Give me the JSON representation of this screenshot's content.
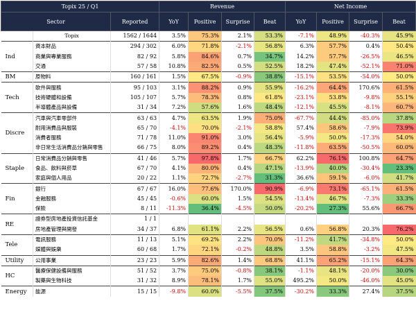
{
  "table": {
    "title": "Topix 25 / Q1",
    "revenue": "Revenue",
    "net_income": "Net Income",
    "columns": [
      "Sector",
      "Reported",
      "YoY",
      "Positive",
      "Surprise",
      "Beat",
      "YoY",
      "Positive",
      "Surprise",
      "Beat"
    ],
    "groups": [
      {
        "rows": [
          {
            "name": "Topix",
            "reported": "1562 / 1644",
            "cells": [
              "3.5%",
              "75.3%",
              "2.1%",
              "53.3%",
              "-7.1%",
              "48.9%",
              "-40.3%",
              "45.9%"
            ]
          }
        ]
      },
      {
        "label": "Ind",
        "rows": [
          {
            "name": "資本財品",
            "reported": "294 / 302",
            "cells": [
              "6.0%",
              "71.8%",
              "-2.1%",
              "56.8%",
              "6.3%",
              "57.7%",
              "0.4%",
              "50.4%"
            ]
          },
          {
            "name": "商業與專業服務",
            "reported": "82 / 92",
            "cells": [
              "5.8%",
              "84.6%",
              "0.7%",
              "34.7%",
              "14.2%",
              "57.7%",
              "-26.5%",
              "46.5%"
            ]
          },
          {
            "name": "交通",
            "reported": "57 / 58",
            "cells": [
              "10.8%",
              "82.5%",
              "0.5%",
              "52.5%",
              "18.2%",
              "47.4%",
              "-52.1%",
              "71.0%"
            ]
          }
        ]
      },
      {
        "label": "BM",
        "rows": [
          {
            "name": "原物料",
            "reported": "160 / 161",
            "cells": [
              "1.5%",
              "67.5%",
              "-0.9%",
              "38.8%",
              "-15.1%",
              "53.5%",
              "-54.0%",
              "50.0%"
            ]
          }
        ]
      },
      {
        "label": "Tech",
        "rows": [
          {
            "name": "軟件與服務",
            "reported": "95 / 103",
            "cells": [
              "3.1%",
              "88.2%",
              "0.9%",
              "55.9%",
              "-16.2%",
              "64.4%",
              "170.6%",
              "61.5%"
            ]
          },
          {
            "name": "技術硬體和設備",
            "reported": "105 / 107",
            "cells": [
              "5.7%",
              "78.3%",
              "0.8%",
              "61.8%",
              "-23.1%",
              "53.8%",
              "-9.8%",
              "55.1%"
            ]
          },
          {
            "name": "半導體產品與設備",
            "reported": "31 / 34",
            "cells": [
              "7.2%",
              "57.6%",
              "1.6%",
              "48.4%",
              "-12.1%",
              "45.5%",
              "-8.1%",
              "60.7%"
            ]
          }
        ]
      },
      {
        "label": "Discre",
        "rows": [
          {
            "name": "汽車與汽車零部件",
            "reported": "63 / 63",
            "cells": [
              "4.7%",
              "63.5%",
              "1.9%",
              "75.0%",
              "-67.7%",
              "44.4%",
              "-85.0%",
              "37.8%"
            ]
          },
          {
            "name": "耐用消費品與服裝",
            "reported": "65 / 70",
            "cells": [
              "-4.1%",
              "70.0%",
              "-2.1%",
              "58.8%",
              "57.4%",
              "58.6%",
              "-7.9%",
              "73.9%"
            ]
          },
          {
            "name": "消費者服務",
            "reported": "71 / 78",
            "cells": [
              "11.0%",
              "91.0%",
              "3.0%",
              "56.4%",
              "-5.9%",
              "50.0%",
              "-17.3%",
              "54.0%"
            ]
          },
          {
            "name": "非日常生活消費品分銷與零售",
            "reported": "66 / 75",
            "cells": [
              "8.0%",
              "89.2%",
              "0.4%",
              "48.3%",
              "-11.8%",
              "63.5%",
              "-50.5%",
              "60.0%"
            ]
          }
        ]
      },
      {
        "label": "Staple",
        "rows": [
          {
            "name": "日常消費品分銷與零售",
            "reported": "41 / 46",
            "cells": [
              "5.7%",
              "97.8%",
              "1.7%",
              "66.7%",
              "62.2%",
              "76.1%",
              "100.8%",
              "64.7%"
            ]
          },
          {
            "name": "食品、飲料與菸草",
            "reported": "67 / 70",
            "cells": [
              "4.1%",
              "80.0%",
              "0.4%",
              "47.1%",
              "-13.9%",
              "40.0%",
              "-30.4%",
              "23.3%"
            ]
          },
          {
            "name": "家庭與個人用品",
            "reported": "20 / 22",
            "cells": [
              "1.1%",
              "72.7%",
              "-2.7%",
              "31.3%",
              "36.6%",
              "59.1%",
              "-6.0%",
              "41.7%"
            ]
          }
        ]
      },
      {
        "label": "Fin",
        "rows": [
          {
            "name": "銀行",
            "reported": "67 / 67",
            "cells": [
              "16.0%",
              "77.6%",
              "170.0%",
              "90.9%",
              "-6.9%",
              "73.1%",
              "-65.1%",
              "61.5%"
            ]
          },
          {
            "name": "金融服務",
            "reported": "45 / 45",
            "cells": [
              "-0.6%",
              "60.0%",
              "1.5%",
              "54.5%",
              "-13.4%",
              "46.7%",
              "-7.3%",
              "33.3%"
            ]
          },
          {
            "name": "保險",
            "reported": "8 / 11",
            "cells": [
              "-11.3%",
              "36.4%",
              "-4.5%",
              "50.0%",
              "-20.2%",
              "27.3%",
              "55.6%",
              "66.7%"
            ]
          }
        ]
      },
      {
        "label": "RE",
        "rows": [
          {
            "name": "證券型房地產投資信託基金",
            "reported": "1 / 1",
            "cells": []
          },
          {
            "name": "房地產管理與開發",
            "reported": "34 / 37",
            "cells": [
              "6.8%",
              "61.1%",
              "2.2%",
              "56.5%",
              "0.6%",
              "56.8%",
              "20.3%",
              "76.2%"
            ]
          }
        ]
      },
      {
        "label": "Tele",
        "rows": [
          {
            "name": "電訊服務",
            "reported": "11 / 13",
            "cells": [
              "5.1%",
              "69.2%",
              "2.2%",
              "70.0%",
              "-11.2%",
              "41.7%",
              "-34.8%",
              "50.0%"
            ]
          },
          {
            "name": "媒體與娛樂",
            "reported": "60 / 68",
            "cells": [
              "1.7%",
              "72.1%",
              "-0.2%",
              "48.8%",
              "3.5%",
              "58.8%",
              "-3.2%",
              "47.5%"
            ]
          }
        ]
      },
      {
        "label": "Utility",
        "rows": [
          {
            "name": "公用事業",
            "reported": "23 / 23",
            "cells": [
              "5.9%",
              "82.6%",
              "1.4%",
              "68.8%",
              "41.1%",
              "65.2%",
              "-15.1%",
              "64.3%"
            ]
          }
        ]
      },
      {
        "label": "HC",
        "rows": [
          {
            "name": "醫療保健設備與服務",
            "reported": "51 / 52",
            "cells": [
              "3.7%",
              "75.0%",
              "-0.8%",
              "38.1%",
              "-1.1%",
              "48.1%",
              "-20.0%",
              "30.0%"
            ]
          },
          {
            "name": "製藥與生物科技",
            "reported": "31 / 32",
            "cells": [
              "8.9%",
              "78.1%",
              "1.7%",
              "55.0%",
              "495.2%",
              "50.0%",
              "-46.0%",
              "45.0%"
            ]
          }
        ]
      },
      {
        "label": "Energy",
        "rows": [
          {
            "name": "能源",
            "reported": "15 / 15",
            "cells": [
              "-9.8%",
              "60.0%",
              "-5.5%",
              "37.5%",
              "-30.2%",
              "33.3%",
              "27.4%",
              "37.5%"
            ]
          }
        ]
      }
    ]
  }
}
